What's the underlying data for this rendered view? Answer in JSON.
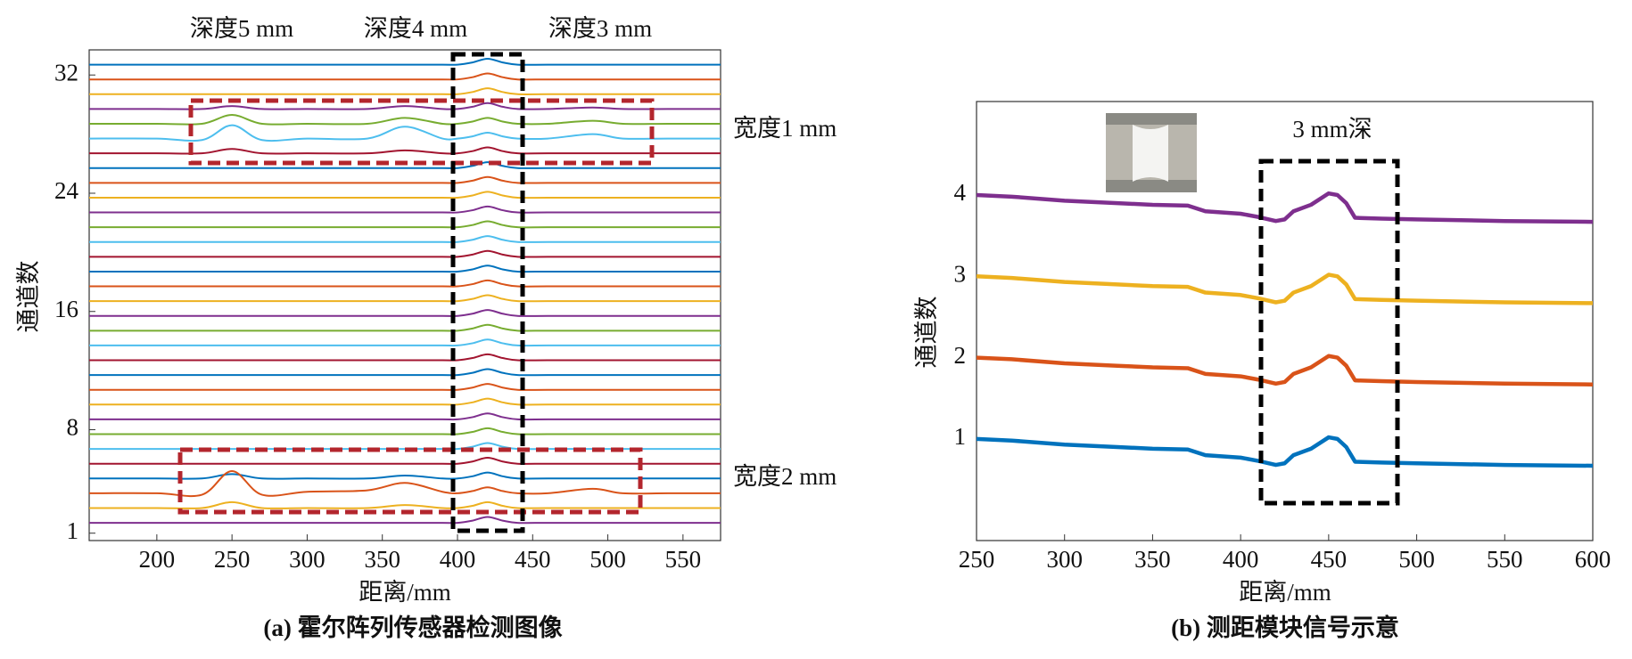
{
  "chart_data": [
    {
      "type": "line",
      "caption": "(a) 霍尔阵列传感器检测图像",
      "x_label": "距离/mm",
      "y_label": "通道数",
      "annotations": [
        "深度5 mm",
        "深度4 mm",
        "深度3 mm",
        "宽度1 mm",
        "宽度2 mm"
      ],
      "xlim": [
        155,
        575
      ],
      "ylim": [
        0.5,
        33.7
      ],
      "xticks": [
        200,
        250,
        300,
        350,
        400,
        450,
        500,
        550
      ],
      "yticks": [
        1,
        8,
        16,
        24,
        32
      ],
      "x": [
        155,
        200,
        230,
        250,
        270,
        300,
        340,
        365,
        390,
        400,
        410,
        420,
        430,
        440,
        460,
        490,
        510,
        540,
        575
      ],
      "series": [
        {
          "color": "#0072BD",
          "values": [
            32.7,
            32.7,
            32.7,
            32.7,
            32.7,
            32.7,
            32.7,
            32.7,
            32.7,
            32.7,
            32.85,
            33.1,
            32.85,
            32.7,
            32.7,
            32.7,
            32.7,
            32.7,
            32.7
          ]
        },
        {
          "color": "#D95319",
          "values": [
            31.7,
            31.7,
            31.7,
            31.7,
            31.7,
            31.7,
            31.7,
            31.7,
            31.7,
            31.7,
            31.85,
            32.1,
            31.85,
            31.7,
            31.7,
            31.7,
            31.7,
            31.7,
            31.7
          ]
        },
        {
          "color": "#EDB120",
          "values": [
            30.7,
            30.7,
            30.7,
            30.7,
            30.7,
            30.7,
            30.7,
            30.7,
            30.7,
            30.7,
            30.85,
            31.1,
            30.85,
            30.7,
            30.7,
            30.7,
            30.7,
            30.7,
            30.7
          ]
        },
        {
          "color": "#7E2F8E",
          "values": [
            29.7,
            29.7,
            29.7,
            29.9,
            29.7,
            29.7,
            29.7,
            29.9,
            29.7,
            29.7,
            29.85,
            30.1,
            29.85,
            29.7,
            29.7,
            29.8,
            29.7,
            29.7,
            29.7
          ]
        },
        {
          "color": "#77AC30",
          "values": [
            28.7,
            28.7,
            28.7,
            29.3,
            28.7,
            28.7,
            28.7,
            29.1,
            28.7,
            28.7,
            28.85,
            29.1,
            28.85,
            28.7,
            28.7,
            28.9,
            28.7,
            28.7,
            28.7
          ]
        },
        {
          "color": "#4DBEEE",
          "values": [
            27.7,
            27.7,
            27.6,
            28.6,
            27.6,
            27.7,
            27.7,
            28.5,
            27.7,
            27.7,
            27.85,
            28.1,
            27.85,
            27.7,
            27.7,
            28.0,
            27.7,
            27.7,
            27.7
          ]
        },
        {
          "color": "#A2142F",
          "values": [
            26.7,
            26.7,
            26.7,
            27.0,
            26.7,
            26.7,
            26.7,
            26.9,
            26.7,
            26.7,
            26.85,
            27.1,
            26.85,
            26.7,
            26.7,
            26.7,
            26.7,
            26.7,
            26.7
          ]
        },
        {
          "color": "#0072BD",
          "values": [
            25.7,
            25.7,
            25.7,
            25.7,
            25.7,
            25.7,
            25.7,
            25.7,
            25.7,
            25.7,
            25.85,
            26.1,
            25.85,
            25.7,
            25.7,
            25.7,
            25.7,
            25.7,
            25.7
          ]
        },
        {
          "color": "#D95319",
          "values": [
            24.7,
            24.7,
            24.7,
            24.7,
            24.7,
            24.7,
            24.7,
            24.7,
            24.7,
            24.7,
            24.85,
            25.1,
            24.85,
            24.7,
            24.7,
            24.7,
            24.7,
            24.7,
            24.7
          ]
        },
        {
          "color": "#EDB120",
          "values": [
            23.7,
            23.7,
            23.7,
            23.7,
            23.7,
            23.7,
            23.7,
            23.7,
            23.7,
            23.7,
            23.85,
            24.1,
            23.85,
            23.7,
            23.7,
            23.7,
            23.7,
            23.7,
            23.7
          ]
        },
        {
          "color": "#7E2F8E",
          "values": [
            22.7,
            22.7,
            22.7,
            22.7,
            22.7,
            22.7,
            22.7,
            22.7,
            22.7,
            22.7,
            22.85,
            23.1,
            22.85,
            22.7,
            22.7,
            22.7,
            22.7,
            22.7,
            22.7
          ]
        },
        {
          "color": "#77AC30",
          "values": [
            21.7,
            21.7,
            21.7,
            21.7,
            21.7,
            21.7,
            21.7,
            21.7,
            21.7,
            21.7,
            21.85,
            22.1,
            21.85,
            21.7,
            21.7,
            21.7,
            21.7,
            21.7,
            21.7
          ]
        },
        {
          "color": "#4DBEEE",
          "values": [
            20.7,
            20.7,
            20.7,
            20.7,
            20.7,
            20.7,
            20.7,
            20.7,
            20.7,
            20.7,
            20.85,
            21.1,
            20.85,
            20.7,
            20.7,
            20.7,
            20.7,
            20.7,
            20.7
          ]
        },
        {
          "color": "#A2142F",
          "values": [
            19.7,
            19.7,
            19.7,
            19.7,
            19.7,
            19.7,
            19.7,
            19.7,
            19.7,
            19.7,
            19.85,
            20.1,
            19.85,
            19.7,
            19.7,
            19.7,
            19.7,
            19.7,
            19.7
          ]
        },
        {
          "color": "#0072BD",
          "values": [
            18.7,
            18.7,
            18.7,
            18.7,
            18.7,
            18.7,
            18.7,
            18.7,
            18.7,
            18.7,
            18.85,
            19.1,
            18.85,
            18.7,
            18.7,
            18.7,
            18.7,
            18.7,
            18.7
          ]
        },
        {
          "color": "#D95319",
          "values": [
            17.7,
            17.7,
            17.7,
            17.7,
            17.7,
            17.7,
            17.7,
            17.7,
            17.7,
            17.7,
            17.85,
            18.1,
            17.85,
            17.7,
            17.7,
            17.7,
            17.7,
            17.7,
            17.7
          ]
        },
        {
          "color": "#EDB120",
          "values": [
            16.7,
            16.7,
            16.7,
            16.7,
            16.7,
            16.7,
            16.7,
            16.7,
            16.7,
            16.7,
            16.85,
            17.1,
            16.85,
            16.7,
            16.7,
            16.7,
            16.7,
            16.7,
            16.7
          ]
        },
        {
          "color": "#7E2F8E",
          "values": [
            15.7,
            15.7,
            15.7,
            15.7,
            15.7,
            15.7,
            15.7,
            15.7,
            15.7,
            15.7,
            15.85,
            16.1,
            15.85,
            15.7,
            15.7,
            15.7,
            15.7,
            15.7,
            15.7
          ]
        },
        {
          "color": "#77AC30",
          "values": [
            14.7,
            14.7,
            14.7,
            14.7,
            14.7,
            14.7,
            14.7,
            14.7,
            14.7,
            14.7,
            14.85,
            15.1,
            14.85,
            14.7,
            14.7,
            14.7,
            14.7,
            14.7,
            14.7
          ]
        },
        {
          "color": "#4DBEEE",
          "values": [
            13.7,
            13.7,
            13.7,
            13.7,
            13.7,
            13.7,
            13.7,
            13.7,
            13.7,
            13.7,
            13.85,
            14.1,
            13.85,
            13.7,
            13.7,
            13.7,
            13.7,
            13.7,
            13.7
          ]
        },
        {
          "color": "#A2142F",
          "values": [
            12.7,
            12.7,
            12.7,
            12.7,
            12.7,
            12.7,
            12.7,
            12.7,
            12.7,
            12.7,
            12.85,
            13.1,
            12.85,
            12.7,
            12.7,
            12.7,
            12.7,
            12.7,
            12.7
          ]
        },
        {
          "color": "#0072BD",
          "values": [
            11.7,
            11.7,
            11.7,
            11.7,
            11.7,
            11.7,
            11.7,
            11.7,
            11.7,
            11.7,
            11.85,
            12.1,
            11.85,
            11.7,
            11.7,
            11.7,
            11.7,
            11.7,
            11.7
          ]
        },
        {
          "color": "#D95319",
          "values": [
            10.7,
            10.7,
            10.7,
            10.7,
            10.7,
            10.7,
            10.7,
            10.7,
            10.7,
            10.7,
            10.85,
            11.1,
            10.85,
            10.7,
            10.7,
            10.7,
            10.7,
            10.7,
            10.7
          ]
        },
        {
          "color": "#EDB120",
          "values": [
            9.7,
            9.7,
            9.7,
            9.7,
            9.7,
            9.7,
            9.7,
            9.7,
            9.7,
            9.7,
            9.85,
            10.1,
            9.85,
            9.7,
            9.7,
            9.7,
            9.7,
            9.7,
            9.7
          ]
        },
        {
          "color": "#7E2F8E",
          "values": [
            8.7,
            8.7,
            8.7,
            8.7,
            8.7,
            8.7,
            8.7,
            8.7,
            8.7,
            8.7,
            8.85,
            9.1,
            8.85,
            8.7,
            8.7,
            8.7,
            8.7,
            8.7,
            8.7
          ]
        },
        {
          "color": "#77AC30",
          "values": [
            7.7,
            7.7,
            7.7,
            7.7,
            7.7,
            7.7,
            7.7,
            7.7,
            7.7,
            7.7,
            7.85,
            8.1,
            7.85,
            7.7,
            7.7,
            7.7,
            7.7,
            7.7,
            7.7
          ]
        },
        {
          "color": "#4DBEEE",
          "values": [
            6.7,
            6.7,
            6.7,
            6.7,
            6.7,
            6.7,
            6.7,
            6.7,
            6.7,
            6.7,
            6.85,
            7.1,
            6.85,
            6.7,
            6.7,
            6.7,
            6.7,
            6.7,
            6.7
          ]
        },
        {
          "color": "#A2142F",
          "values": [
            5.7,
            5.7,
            5.7,
            5.7,
            5.7,
            5.7,
            5.7,
            5.7,
            5.7,
            5.7,
            5.85,
            6.1,
            5.85,
            5.7,
            5.7,
            5.7,
            5.7,
            5.7,
            5.7
          ]
        },
        {
          "color": "#0072BD",
          "values": [
            4.7,
            4.7,
            4.7,
            5.0,
            4.7,
            4.7,
            4.7,
            4.9,
            4.7,
            4.7,
            4.85,
            5.1,
            4.85,
            4.7,
            4.7,
            4.7,
            4.7,
            4.7,
            4.7
          ]
        },
        {
          "color": "#D95319",
          "values": [
            3.7,
            3.7,
            3.6,
            5.2,
            3.6,
            3.8,
            3.9,
            4.4,
            3.8,
            3.7,
            3.85,
            4.1,
            3.85,
            3.7,
            3.7,
            4.0,
            3.7,
            3.7,
            3.7
          ]
        },
        {
          "color": "#EDB120",
          "values": [
            2.7,
            2.7,
            2.7,
            3.1,
            2.7,
            2.7,
            2.7,
            2.9,
            2.7,
            2.7,
            2.85,
            3.1,
            2.85,
            2.7,
            2.7,
            2.7,
            2.7,
            2.7,
            2.7
          ]
        },
        {
          "color": "#7E2F8E",
          "values": [
            1.7,
            1.7,
            1.7,
            1.7,
            1.7,
            1.7,
            1.7,
            1.7,
            1.7,
            1.7,
            1.85,
            2.1,
            1.85,
            1.7,
            1.7,
            1.7,
            1.7,
            1.7,
            1.7
          ]
        }
      ]
    },
    {
      "type": "line",
      "caption": "(b) 测距模块信号示意",
      "x_label": "距离/mm",
      "y_label": "通道数",
      "annotations": [
        "3 mm深"
      ],
      "xlim": [
        250,
        600
      ],
      "ylim": [
        -0.25,
        5.15
      ],
      "xticks": [
        250,
        300,
        350,
        400,
        450,
        500,
        550,
        600
      ],
      "yticks": [
        1,
        2,
        3,
        4
      ],
      "x": [
        250,
        270,
        300,
        330,
        350,
        370,
        380,
        400,
        410,
        420,
        425,
        430,
        440,
        450,
        455,
        460,
        465,
        480,
        500,
        550,
        600
      ],
      "series": [
        {
          "color": "#0072BD",
          "values": [
            1.0,
            0.98,
            0.93,
            0.9,
            0.88,
            0.87,
            0.8,
            0.77,
            0.73,
            0.68,
            0.7,
            0.8,
            0.88,
            1.02,
            1.0,
            0.9,
            0.72,
            0.71,
            0.7,
            0.68,
            0.67
          ]
        },
        {
          "color": "#D95319",
          "values": [
            2.0,
            1.98,
            1.93,
            1.9,
            1.88,
            1.87,
            1.8,
            1.77,
            1.73,
            1.68,
            1.7,
            1.8,
            1.88,
            2.02,
            2.0,
            1.9,
            1.72,
            1.71,
            1.7,
            1.68,
            1.67
          ]
        },
        {
          "color": "#EDB120",
          "values": [
            3.0,
            2.98,
            2.93,
            2.9,
            2.88,
            2.87,
            2.8,
            2.77,
            2.73,
            2.68,
            2.7,
            2.8,
            2.88,
            3.02,
            3.0,
            2.9,
            2.72,
            2.71,
            2.7,
            2.68,
            2.67
          ]
        },
        {
          "color": "#7E2F8E",
          "values": [
            4.0,
            3.98,
            3.93,
            3.9,
            3.88,
            3.87,
            3.8,
            3.77,
            3.73,
            3.68,
            3.7,
            3.8,
            3.88,
            4.02,
            4.0,
            3.9,
            3.72,
            3.71,
            3.7,
            3.68,
            3.67
          ]
        }
      ]
    }
  ]
}
